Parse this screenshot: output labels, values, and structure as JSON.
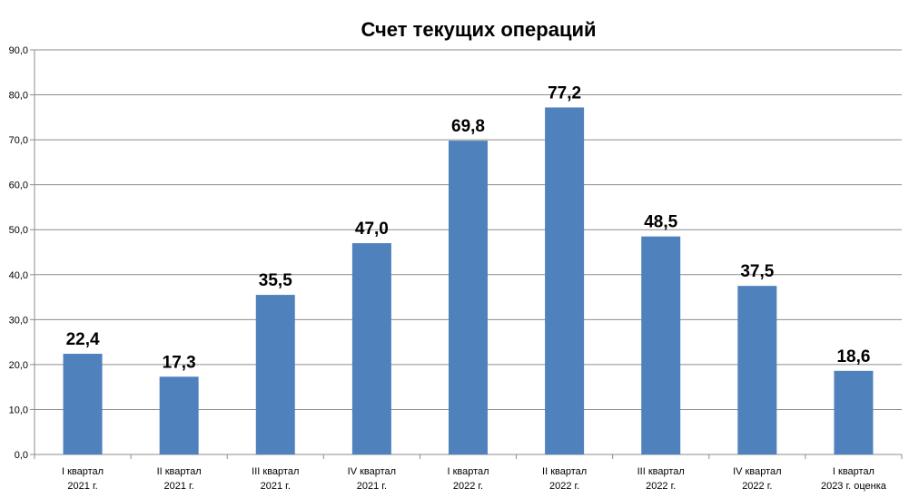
{
  "chart_data": {
    "type": "bar",
    "title": "Счет текущих операций",
    "xlabel": "",
    "ylabel": "",
    "categories": [
      [
        "I квартал",
        "2021 г."
      ],
      [
        "II квартал",
        "2021 г."
      ],
      [
        "III квартал",
        "2021 г."
      ],
      [
        "IV квартал",
        "2021 г."
      ],
      [
        "I квартал",
        "2022 г."
      ],
      [
        "II квартал",
        "2022 г."
      ],
      [
        "III квартал",
        "2022 г."
      ],
      [
        "IV квартал",
        "2022 г."
      ],
      [
        "I квартал",
        "2023 г. оценка"
      ]
    ],
    "values": [
      22.4,
      17.3,
      35.5,
      47.0,
      69.8,
      77.2,
      48.5,
      37.5,
      18.6
    ],
    "data_labels": [
      "22,4",
      "17,3",
      "35,5",
      "47,0",
      "69,8",
      "77,2",
      "48,5",
      "37,5",
      "18,6"
    ],
    "yticks": [
      "0,0",
      "10,0",
      "20,0",
      "30,0",
      "40,0",
      "50,0",
      "60,0",
      "70,0",
      "80,0",
      "90,0"
    ],
    "ylim": [
      0,
      90
    ],
    "grid": true,
    "legend": "none",
    "colors": {
      "bar": "#4f81bd",
      "grid": "#8c8c8c",
      "axis": "#8c8c8c"
    }
  }
}
